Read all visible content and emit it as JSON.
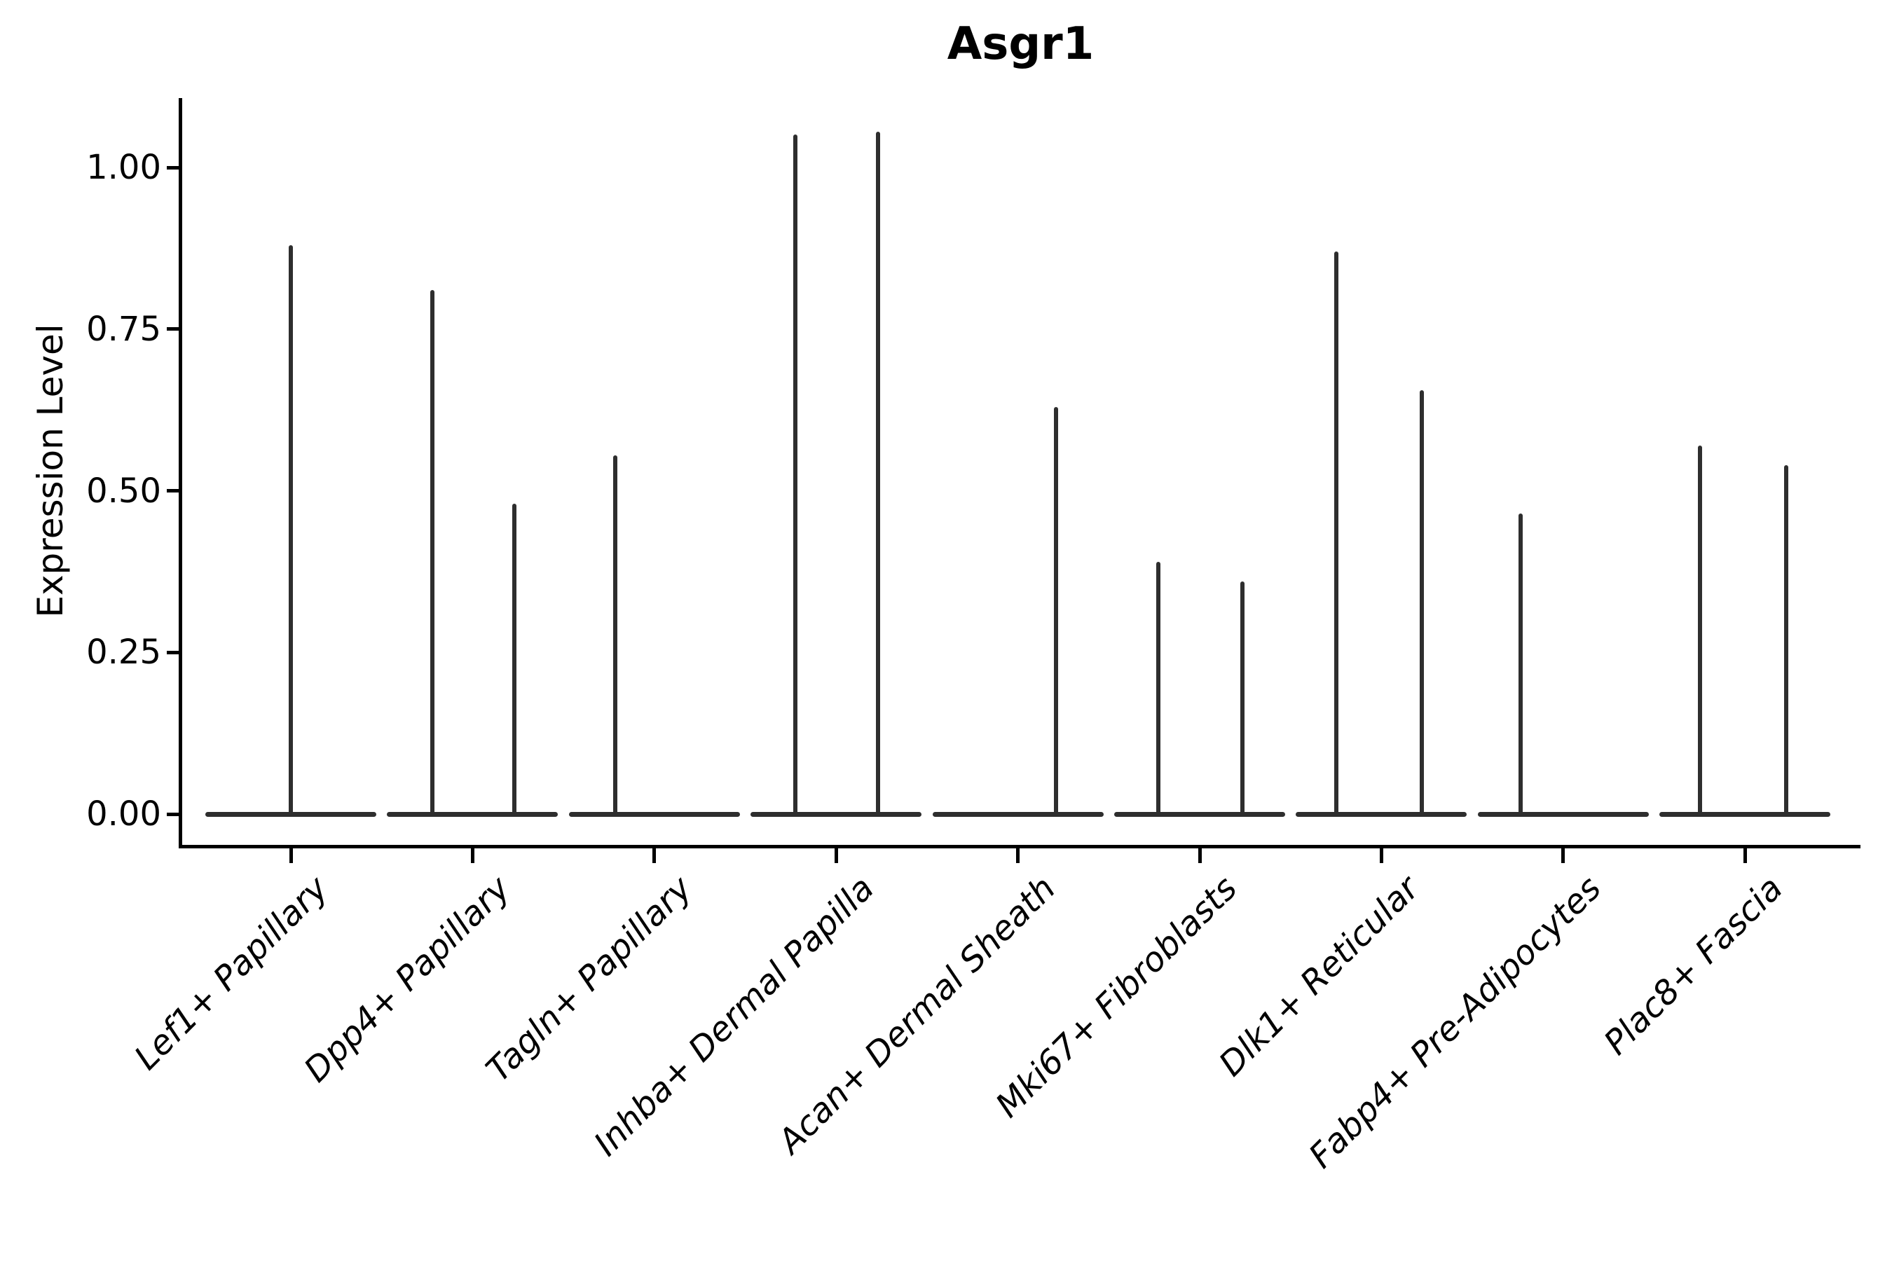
{
  "title": "Asgr1",
  "colors": {
    "violin": "#2e2e2e",
    "axis": "#000000",
    "background": "#ffffff"
  },
  "chart_data": {
    "type": "violin",
    "title": "Asgr1",
    "xlabel": "",
    "ylabel": "Expression Level",
    "ylim": [
      0,
      1.1
    ],
    "grid": false,
    "legend": "none",
    "y_ticks": [
      1.0,
      0.75,
      0.5,
      0.25,
      0.0
    ],
    "y_tick_labels": [
      "1.00",
      "0.75",
      "0.50",
      "0.25",
      "0.00"
    ],
    "categories": [
      "Lef1+ Papillary",
      "Dpp4+ Papillary",
      "Tagln+ Papillary",
      "Inhba+ Dermal Papilla",
      "Acan+ Dermal Sheath",
      "Mki67+ Fibroblasts",
      "Dlk1+ Reticular",
      "Fabp4+ Pre-Adipocytes",
      "Plac8+ Fascia"
    ],
    "series": [
      {
        "category": "Lef1+ Papillary",
        "baseline_at_zero": true,
        "spikes": [
          {
            "pos": 0.0,
            "max": 0.88
          }
        ]
      },
      {
        "category": "Dpp4+ Papillary",
        "baseline_at_zero": true,
        "spikes": [
          {
            "pos": -0.22,
            "max": 0.81
          },
          {
            "pos": 0.23,
            "max": 0.48
          }
        ]
      },
      {
        "category": "Tagln+ Papillary",
        "baseline_at_zero": true,
        "spikes": [
          {
            "pos": -0.215,
            "max": 0.555
          }
        ]
      },
      {
        "category": "Inhba+ Dermal Papilla",
        "baseline_at_zero": true,
        "spikes": [
          {
            "pos": -0.225,
            "max": 1.051
          },
          {
            "pos": 0.23,
            "max": 1.055
          }
        ]
      },
      {
        "category": "Acan+ Dermal Sheath",
        "baseline_at_zero": true,
        "spikes": [
          {
            "pos": 0.21,
            "max": 0.63
          }
        ]
      },
      {
        "category": "Mki67+ Fibroblasts",
        "baseline_at_zero": true,
        "spikes": [
          {
            "pos": -0.2275,
            "max": 0.39
          },
          {
            "pos": 0.235,
            "max": 0.36
          }
        ]
      },
      {
        "category": "Dlk1+ Reticular",
        "baseline_at_zero": true,
        "spikes": [
          {
            "pos": -0.2465,
            "max": 0.87
          },
          {
            "pos": 0.2235,
            "max": 0.655
          }
        ]
      },
      {
        "category": "Fabp4+ Pre-Adipocytes",
        "baseline_at_zero": true,
        "spikes": [
          {
            "pos": -0.235,
            "max": 0.465
          }
        ]
      },
      {
        "category": "Plac8+ Fascia",
        "baseline_at_zero": true,
        "spikes": [
          {
            "pos": -0.2465,
            "max": 0.57
          },
          {
            "pos": 0.2275,
            "max": 0.54
          }
        ]
      }
    ]
  }
}
